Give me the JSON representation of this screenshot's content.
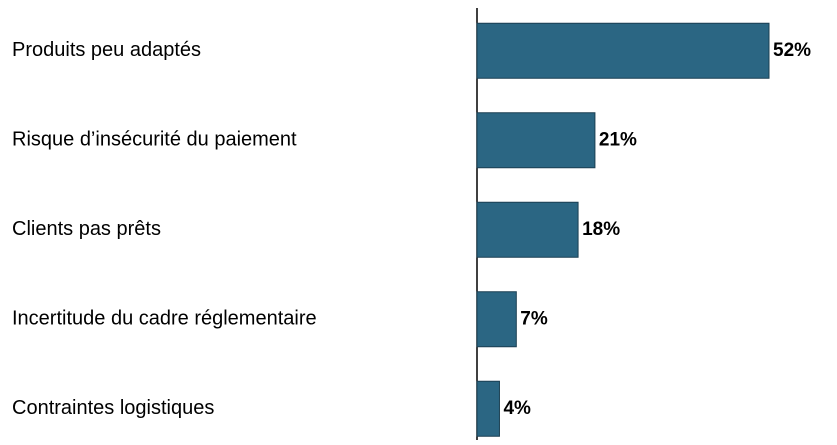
{
  "chart_data": {
    "type": "hbar",
    "categories": [
      "Produits peu adaptés",
      "Risque d’insécurité du paiement",
      "Clients pas prêts",
      "Incertitude du cadre réglementaire",
      "Contraintes logistiques"
    ],
    "values": [
      52,
      21,
      18,
      7,
      4
    ],
    "value_labels": [
      "52%",
      "21%",
      "18%",
      "7%",
      "4%"
    ],
    "color": "#2b6683",
    "xlim": [
      0,
      52
    ]
  }
}
